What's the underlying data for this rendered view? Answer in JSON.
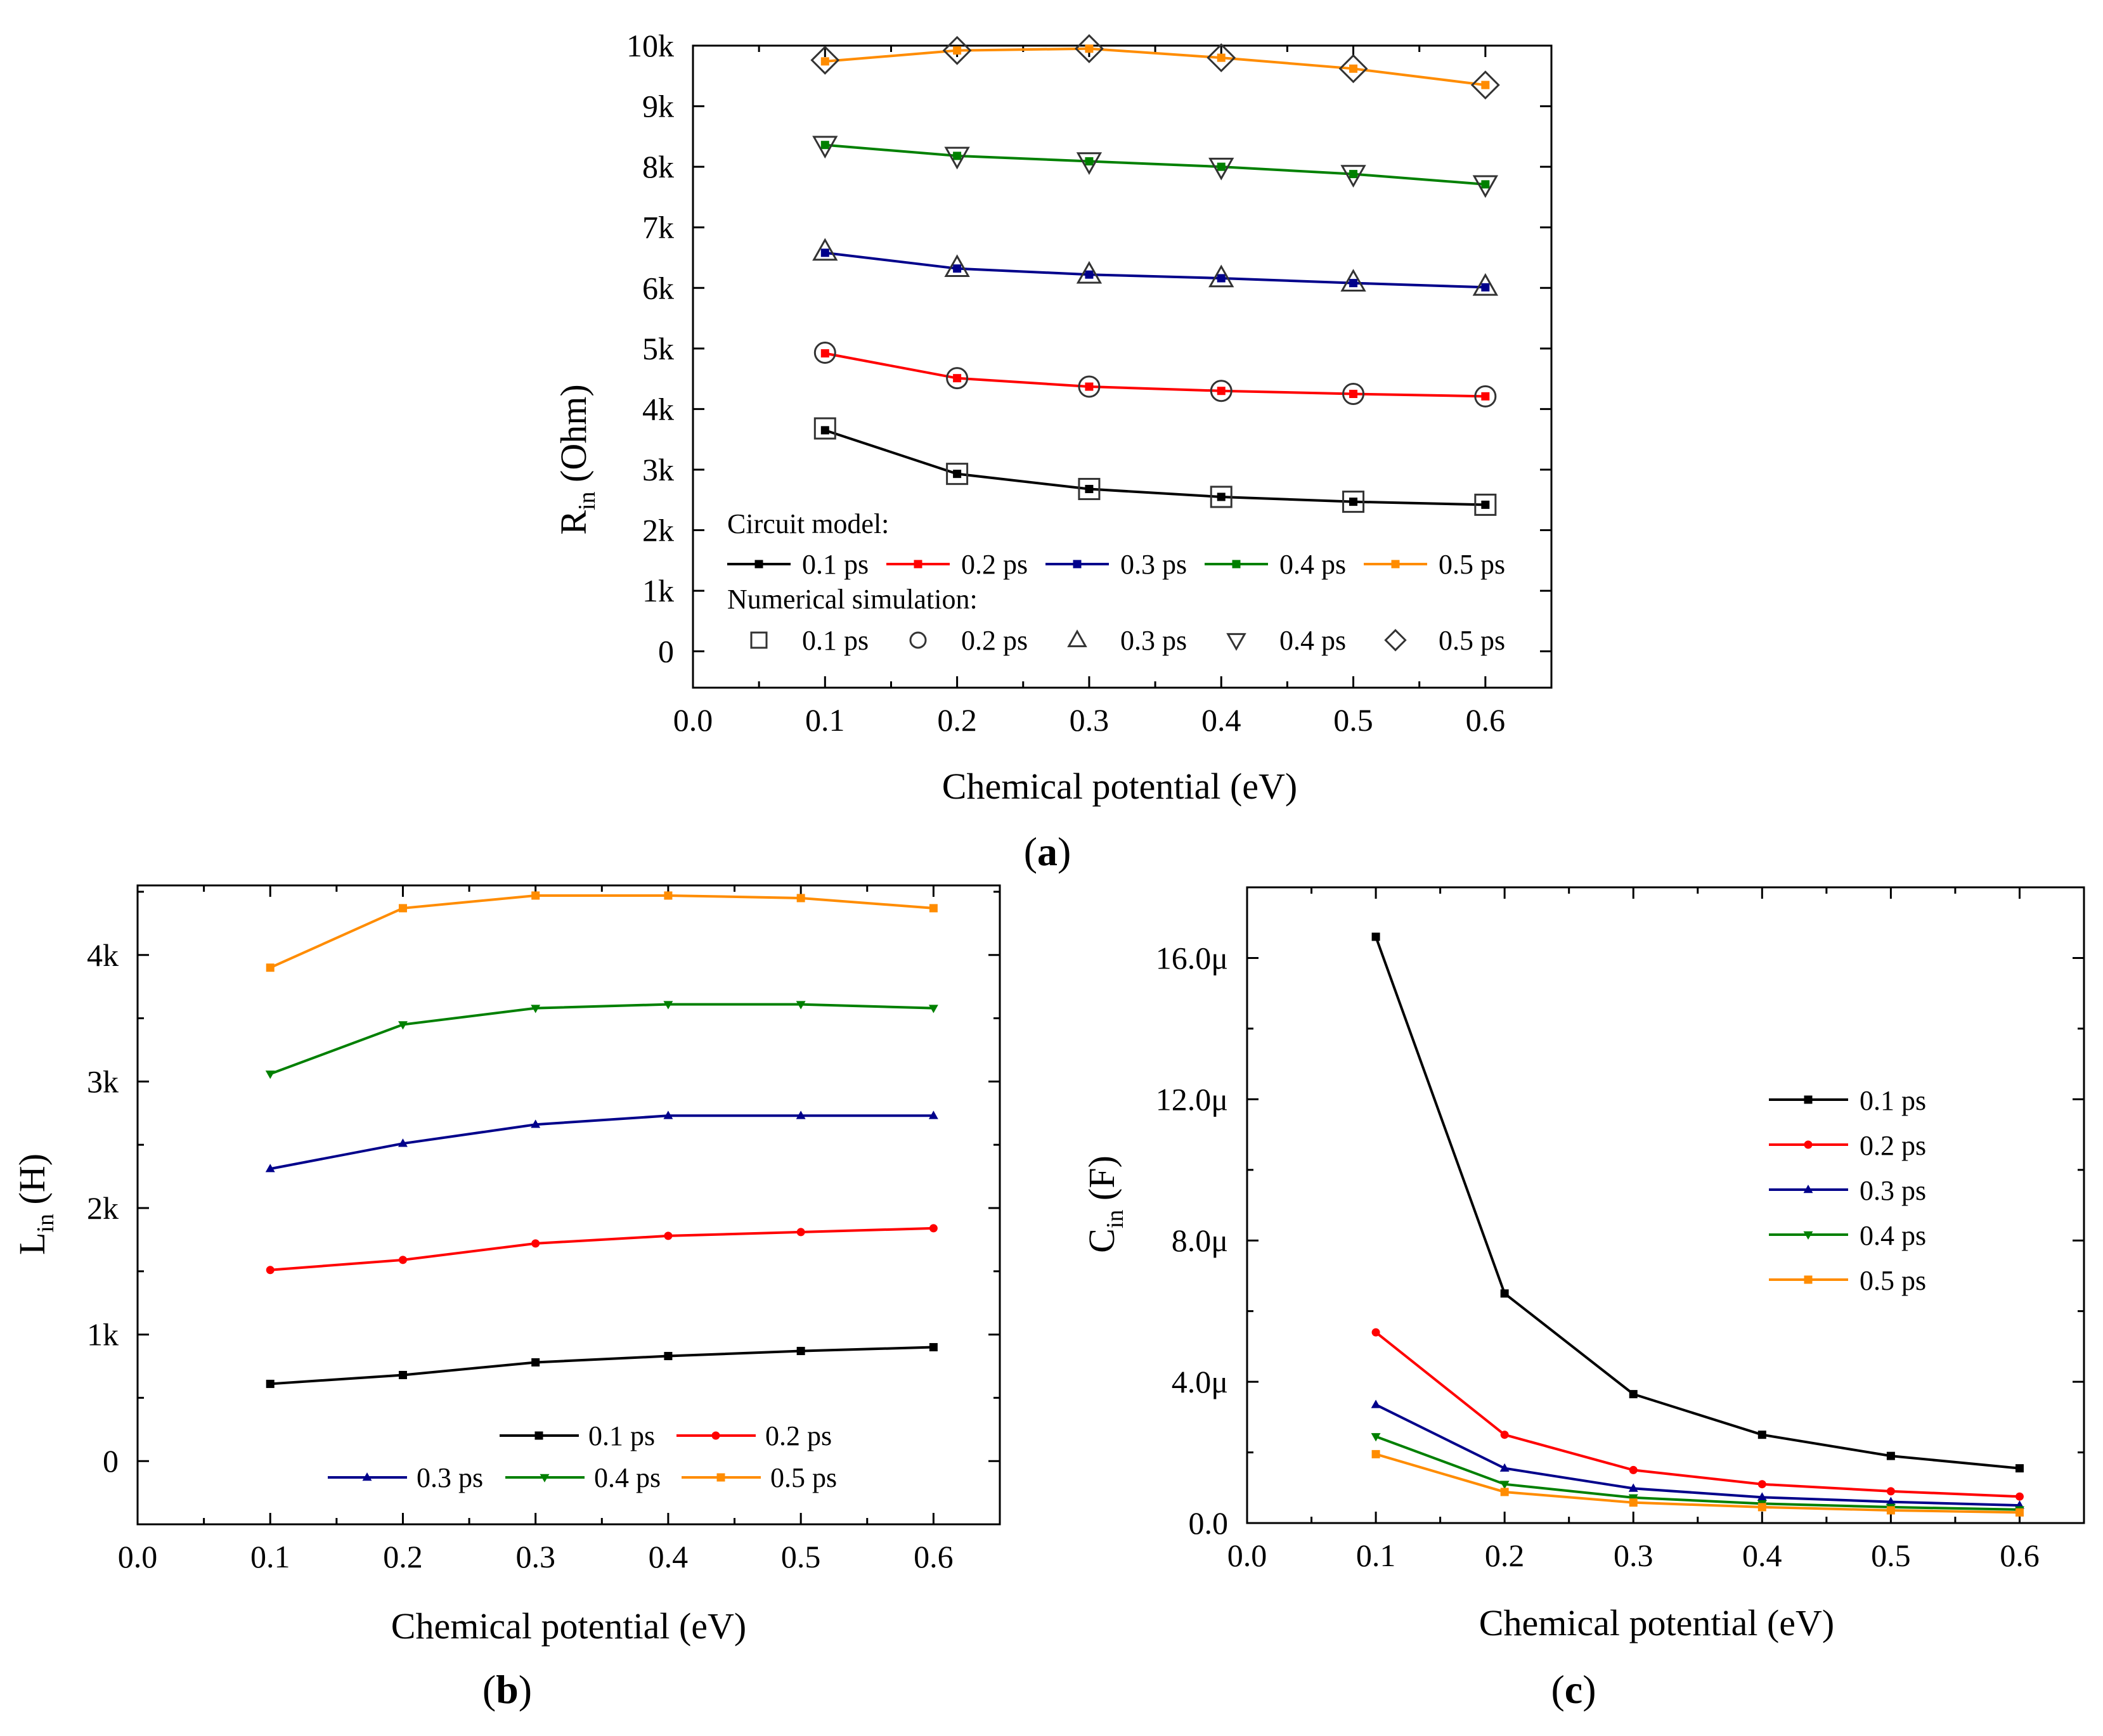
{
  "chart_data": [
    {
      "panel": "(a)",
      "panel_letter": "a",
      "type": "line",
      "ylabel_main": "R",
      "ylabel_sub": "in",
      "ylabel_rest": " (Ohm)",
      "xlabel": "Chemical potential (eV)",
      "xlim": [
        0.0,
        0.65
      ],
      "ylim": [
        -600,
        10000
      ],
      "x_ticks": [
        0.0,
        0.1,
        0.2,
        0.3,
        0.4,
        0.5,
        0.6
      ],
      "x_tick_labels": [
        "0.0",
        "0.1",
        "0.2",
        "0.3",
        "0.4",
        "0.5",
        "0.6"
      ],
      "y_ticks": [
        0,
        1000,
        2000,
        3000,
        4000,
        5000,
        6000,
        7000,
        8000,
        9000,
        10000
      ],
      "y_tick_labels": [
        "0",
        "1k",
        "2k",
        "3k",
        "4k",
        "5k",
        "6k",
        "7k",
        "8k",
        "9k",
        "10k"
      ],
      "legend_heading_1": "Circuit model:",
      "legend_heading_2": "Numerical simulation:",
      "x": [
        0.1,
        0.2,
        0.3,
        0.4,
        0.5,
        0.6
      ],
      "series": [
        {
          "name": "0.1 ps",
          "color": "#000000",
          "values": [
            3650,
            2930,
            2680,
            2550,
            2470,
            2420
          ]
        },
        {
          "name": "0.2 ps",
          "color": "#ff0000",
          "values": [
            4920,
            4510,
            4370,
            4300,
            4250,
            4210
          ]
        },
        {
          "name": "0.3 ps",
          "color": "#00008b",
          "values": [
            6580,
            6320,
            6220,
            6160,
            6080,
            6010
          ]
        },
        {
          "name": "0.4 ps",
          "color": "#008000",
          "values": [
            8360,
            8180,
            8090,
            8000,
            7880,
            7710
          ]
        },
        {
          "name": "0.5 ps",
          "color": "#ff8c00",
          "values": [
            9740,
            9920,
            9950,
            9800,
            9620,
            9350
          ]
        }
      ],
      "simulation_series": [
        {
          "name": "0.1 ps",
          "marker": "square",
          "values": [
            3680,
            2930,
            2680,
            2550,
            2470,
            2420
          ]
        },
        {
          "name": "0.2 ps",
          "marker": "circle",
          "values": [
            4930,
            4510,
            4370,
            4300,
            4250,
            4210
          ]
        },
        {
          "name": "0.3 ps",
          "marker": "triangle-up",
          "values": [
            6600,
            6330,
            6220,
            6160,
            6090,
            6020
          ]
        },
        {
          "name": "0.4 ps",
          "marker": "triangle-down",
          "values": [
            8360,
            8180,
            8090,
            8000,
            7880,
            7710
          ]
        },
        {
          "name": "0.5 ps",
          "marker": "diamond",
          "values": [
            9760,
            9920,
            9950,
            9800,
            9620,
            9350
          ]
        }
      ]
    },
    {
      "panel": "(b)",
      "panel_letter": "b",
      "type": "line",
      "ylabel_main": "L",
      "ylabel_sub": "in",
      "ylabel_rest": " (H)",
      "xlabel": "Chemical potential (eV)",
      "xlim": [
        0.0,
        0.65
      ],
      "ylim": [
        -500,
        4550
      ],
      "x_ticks": [
        0.0,
        0.1,
        0.2,
        0.3,
        0.4,
        0.5,
        0.6
      ],
      "x_tick_labels": [
        "0.0",
        "0.1",
        "0.2",
        "0.3",
        "0.4",
        "0.5",
        "0.6"
      ],
      "y_ticks": [
        0,
        1000,
        2000,
        3000,
        4000
      ],
      "y_tick_labels": [
        "0",
        "1k",
        "2k",
        "3k",
        "4k"
      ],
      "x": [
        0.1,
        0.2,
        0.3,
        0.4,
        0.5,
        0.6
      ],
      "series": [
        {
          "name": "0.1 ps",
          "color": "#000000",
          "marker": "square",
          "values": [
            610,
            680,
            780,
            830,
            870,
            900
          ]
        },
        {
          "name": "0.2 ps",
          "color": "#ff0000",
          "marker": "circle",
          "values": [
            1510,
            1590,
            1720,
            1780,
            1810,
            1840
          ]
        },
        {
          "name": "0.3 ps",
          "color": "#00008b",
          "marker": "triangle-up",
          "values": [
            2310,
            2510,
            2660,
            2730,
            2730,
            2730
          ]
        },
        {
          "name": "0.4 ps",
          "color": "#008000",
          "marker": "triangle-down",
          "values": [
            3060,
            3450,
            3580,
            3610,
            3610,
            3580
          ]
        },
        {
          "name": "0.5 ps",
          "color": "#ff8c00",
          "marker": "square",
          "values": [
            3900,
            4370,
            4470,
            4470,
            4450,
            4370
          ]
        }
      ]
    },
    {
      "panel": "(c)",
      "panel_letter": "c",
      "type": "line",
      "ylabel_main": "C",
      "ylabel_sub": "in",
      "ylabel_rest": " (F)",
      "xlabel": "Chemical potential (eV)",
      "xlim": [
        0.0,
        0.65
      ],
      "ylim": [
        0.0,
        18.0
      ],
      "x_ticks": [
        0.0,
        0.1,
        0.2,
        0.3,
        0.4,
        0.5,
        0.6
      ],
      "x_tick_labels": [
        "0.0",
        "0.1",
        "0.2",
        "0.3",
        "0.4",
        "0.5",
        "0.6"
      ],
      "y_ticks": [
        0.0,
        4.0,
        8.0,
        12.0,
        16.0
      ],
      "y_tick_labels": [
        "0.0",
        "4.0μ",
        "8.0μ",
        "12.0μ",
        "16.0μ"
      ],
      "y_unit": "μF",
      "x": [
        0.1,
        0.2,
        0.3,
        0.4,
        0.5,
        0.6
      ],
      "series": [
        {
          "name": "0.1 ps",
          "color": "#000000",
          "marker": "square",
          "values": [
            16.6,
            6.5,
            3.65,
            2.5,
            1.9,
            1.55
          ]
        },
        {
          "name": "0.2 ps",
          "color": "#ff0000",
          "marker": "circle",
          "values": [
            5.4,
            2.5,
            1.5,
            1.1,
            0.9,
            0.75
          ]
        },
        {
          "name": "0.3 ps",
          "color": "#00008b",
          "marker": "triangle-up",
          "values": [
            3.35,
            1.55,
            0.98,
            0.73,
            0.6,
            0.5
          ]
        },
        {
          "name": "0.4 ps",
          "color": "#008000",
          "marker": "triangle-down",
          "values": [
            2.45,
            1.1,
            0.72,
            0.55,
            0.45,
            0.38
          ]
        },
        {
          "name": "0.5 ps",
          "color": "#ff8c00",
          "marker": "square",
          "values": [
            1.95,
            0.88,
            0.58,
            0.45,
            0.36,
            0.3
          ]
        }
      ]
    }
  ]
}
